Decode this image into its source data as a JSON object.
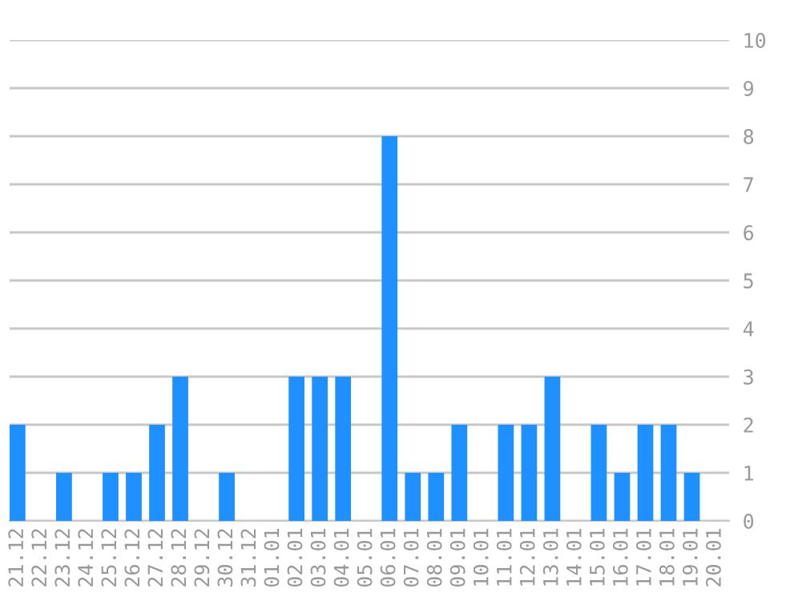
{
  "chart_data": {
    "type": "bar",
    "categories": [
      "21.12",
      "22.12",
      "23.12",
      "24.12",
      "25.12",
      "26.12",
      "27.12",
      "28.12",
      "29.12",
      "30.12",
      "31.12",
      "01.01",
      "02.01",
      "03.01",
      "04.01",
      "05.01",
      "06.01",
      "07.01",
      "08.01",
      "09.01",
      "10.01",
      "11.01",
      "12.01",
      "13.01",
      "14.01",
      "15.01",
      "16.01",
      "17.01",
      "18.01",
      "19.01",
      "20.01"
    ],
    "values": [
      2,
      0,
      1,
      0,
      1,
      1,
      2,
      3,
      0,
      1,
      0,
      0,
      3,
      3,
      3,
      0,
      8,
      1,
      1,
      2,
      0,
      2,
      2,
      3,
      0,
      2,
      1,
      2,
      2,
      1,
      0
    ],
    "color": "#1e90ff",
    "ylim": [
      0,
      10
    ],
    "yticks": [
      0,
      1,
      2,
      3,
      4,
      5,
      6,
      7,
      8,
      9,
      10
    ],
    "grid": "y"
  }
}
